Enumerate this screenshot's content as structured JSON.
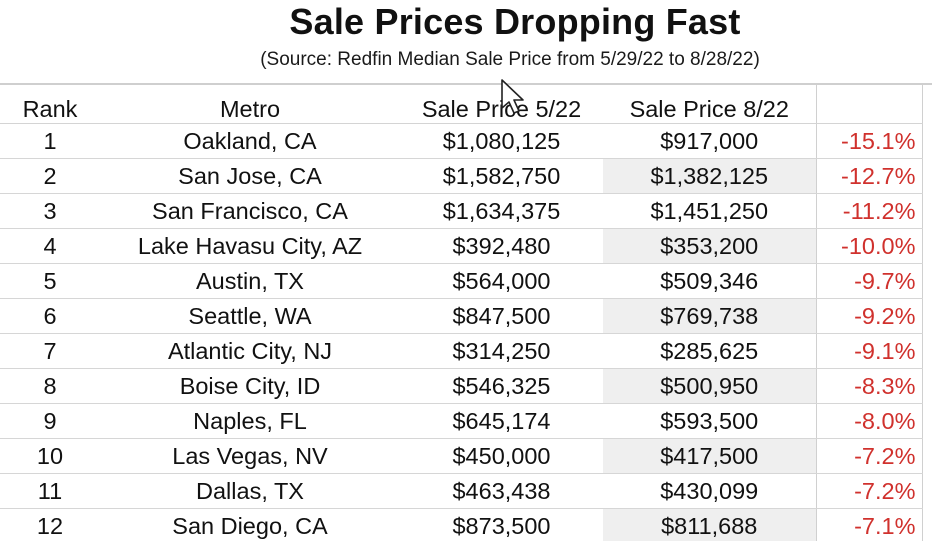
{
  "title": "Sale Prices Dropping Fast",
  "subtitle": "(Source: Redfin Median Sale Price from 5/29/22 to 8/28/22)",
  "table": {
    "headers": {
      "rank": "Rank",
      "metro": "Metro",
      "price_start": "Sale Price 5/22",
      "price_end": "Sale Price 8/22",
      "change": ""
    },
    "rows": [
      {
        "rank": "1",
        "metro": "Oakland, CA",
        "price_start": "$1,080,125",
        "price_end": "$917,000",
        "change": "-15.1%",
        "shaded": false
      },
      {
        "rank": "2",
        "metro": "San Jose, CA",
        "price_start": "$1,582,750",
        "price_end": "$1,382,125",
        "change": "-12.7%",
        "shaded": true
      },
      {
        "rank": "3",
        "metro": "San Francisco, CA",
        "price_start": "$1,634,375",
        "price_end": "$1,451,250",
        "change": "-11.2%",
        "shaded": false
      },
      {
        "rank": "4",
        "metro": "Lake Havasu City, AZ",
        "price_start": "$392,480",
        "price_end": "$353,200",
        "change": "-10.0%",
        "shaded": true
      },
      {
        "rank": "5",
        "metro": "Austin, TX",
        "price_start": "$564,000",
        "price_end": "$509,346",
        "change": "-9.7%",
        "shaded": false
      },
      {
        "rank": "6",
        "metro": "Seattle, WA",
        "price_start": "$847,500",
        "price_end": "$769,738",
        "change": "-9.2%",
        "shaded": true
      },
      {
        "rank": "7",
        "metro": "Atlantic City, NJ",
        "price_start": "$314,250",
        "price_end": "$285,625",
        "change": "-9.1%",
        "shaded": false
      },
      {
        "rank": "8",
        "metro": "Boise City, ID",
        "price_start": "$546,325",
        "price_end": "$500,950",
        "change": "-8.3%",
        "shaded": true
      },
      {
        "rank": "9",
        "metro": "Naples, FL",
        "price_start": "$645,174",
        "price_end": "$593,500",
        "change": "-8.0%",
        "shaded": false
      },
      {
        "rank": "10",
        "metro": "Las Vegas, NV",
        "price_start": "$450,000",
        "price_end": "$417,500",
        "change": "-7.2%",
        "shaded": true
      },
      {
        "rank": "11",
        "metro": "Dallas, TX",
        "price_start": "$463,438",
        "price_end": "$430,099",
        "change": "-7.2%",
        "shaded": false
      },
      {
        "rank": "12",
        "metro": "San Diego, CA",
        "price_start": "$873,500",
        "price_end": "$811,688",
        "change": "-7.1%",
        "shaded": true
      }
    ]
  },
  "colors": {
    "change_text": "#d0312d",
    "shaded_cell": "#efefef",
    "grid_line": "#d6d6d6"
  },
  "icons": {
    "cursor": "mouse-pointer-icon"
  }
}
